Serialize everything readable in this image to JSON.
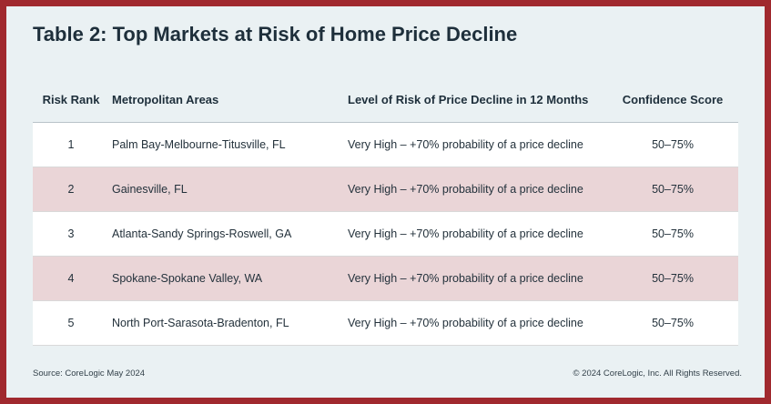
{
  "title": "Table 2: Top Markets at Risk of Home Price Decline",
  "colors": {
    "border": "#a0292e",
    "background": "#eaf1f3",
    "row_highlight": "#ead5d7",
    "row_plain": "#ffffff"
  },
  "table": {
    "headers": {
      "rank": "Risk Rank",
      "metro": "Metropolitan Areas",
      "level": "Level of Risk of Price Decline in 12 Months",
      "confidence": "Confidence Score"
    },
    "rows": [
      {
        "rank": "1",
        "metro": "Palm Bay-Melbourne-Titusville, FL",
        "level": "Very High – +70% probability of a price decline",
        "confidence": "50–75%"
      },
      {
        "rank": "2",
        "metro": "Gainesville, FL",
        "level": "Very High – +70% probability of a price decline",
        "confidence": "50–75%"
      },
      {
        "rank": "3",
        "metro": "Atlanta-Sandy Springs-Roswell, GA",
        "level": "Very High – +70% probability of a price decline",
        "confidence": "50–75%"
      },
      {
        "rank": "4",
        "metro": "Spokane-Spokane Valley, WA",
        "level": "Very High – +70% probability of a price decline",
        "confidence": "50–75%"
      },
      {
        "rank": "5",
        "metro": "North Port-Sarasota-Bradenton, FL",
        "level": "Very High – +70% probability of a price decline",
        "confidence": "50–75%"
      }
    ]
  },
  "footer": {
    "source": "Source: CoreLogic May 2024",
    "copyright": "© 2024 CoreLogic, Inc. All Rights Reserved."
  }
}
